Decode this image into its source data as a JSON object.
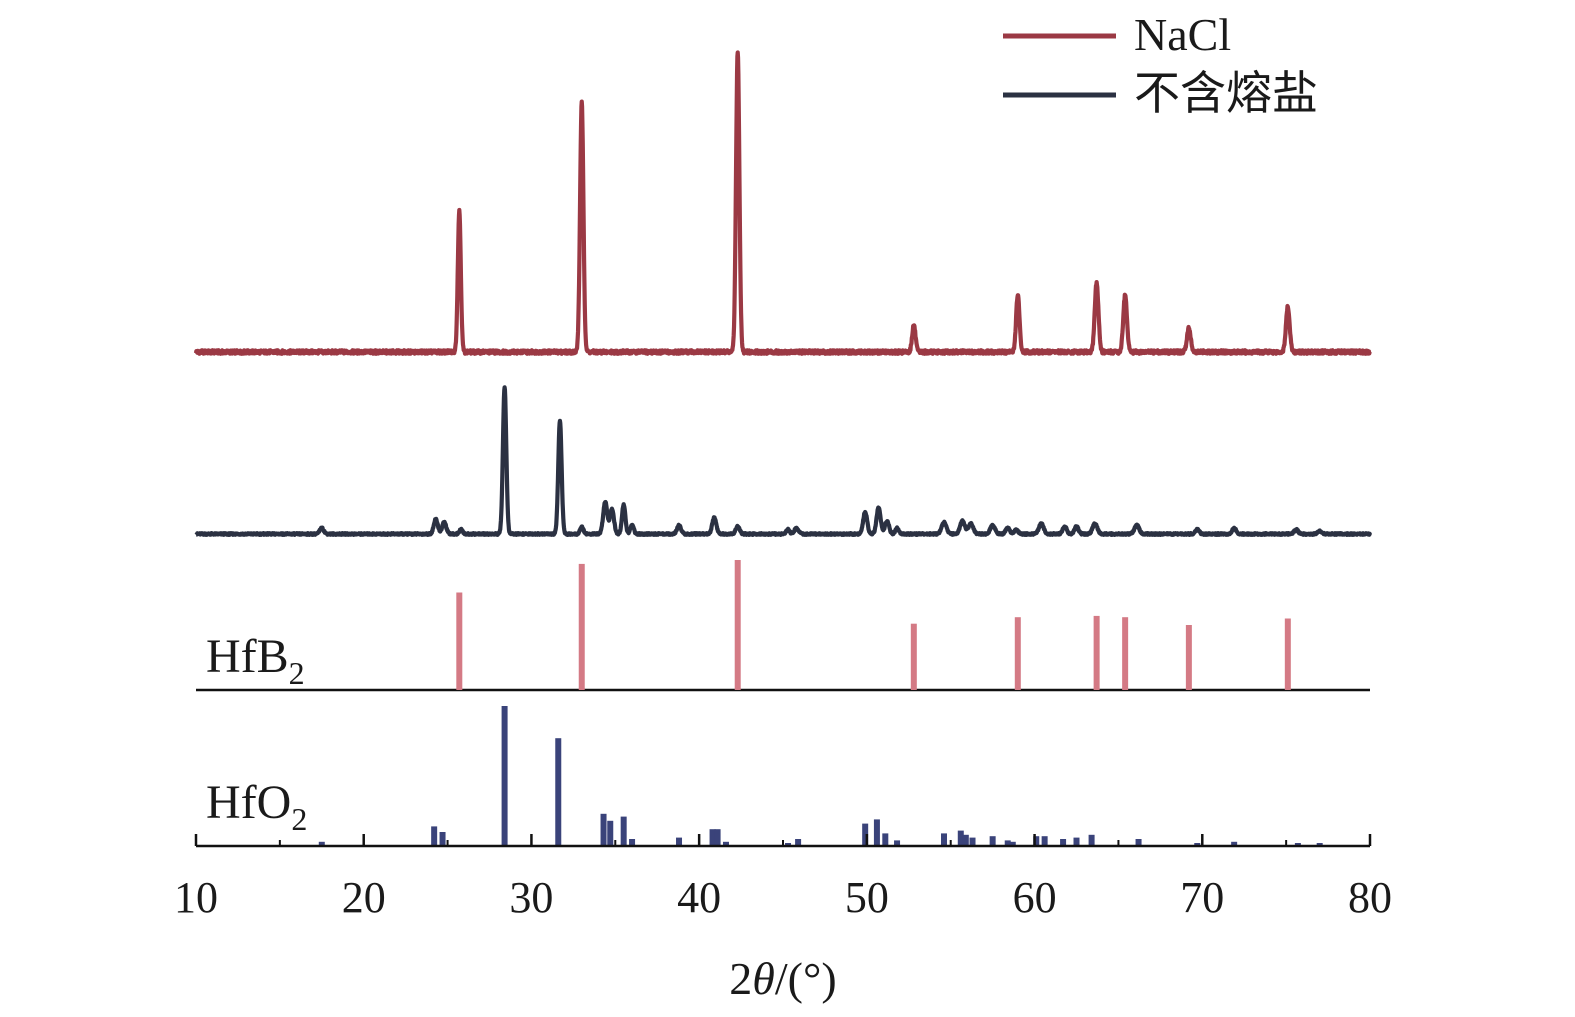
{
  "chart_data": {
    "type": "line",
    "title": "",
    "xlabel_parts": {
      "pre": "2",
      "italic": "θ",
      "post": "/(°)"
    },
    "ylabel": "",
    "xlim": [
      10,
      80
    ],
    "xticks": [
      10,
      20,
      30,
      40,
      50,
      60,
      70,
      80
    ],
    "grid": false,
    "legend": {
      "placement": "top-right",
      "entries": [
        {
          "series": "NaCl",
          "color": "#9b3944"
        },
        {
          "series": "不含熔盐",
          "color": "#2b3142"
        }
      ]
    },
    "series": [
      {
        "name": "NaCl",
        "color": "#9b3944",
        "peaks": [
          {
            "x": 25.7,
            "h": 0.47,
            "w": 0.09
          },
          {
            "x": 33.0,
            "h": 0.83,
            "w": 0.1
          },
          {
            "x": 42.3,
            "h": 1.0,
            "w": 0.1
          },
          {
            "x": 52.8,
            "h": 0.09,
            "w": 0.1
          },
          {
            "x": 59.0,
            "h": 0.19,
            "w": 0.1
          },
          {
            "x": 63.7,
            "h": 0.23,
            "w": 0.11
          },
          {
            "x": 65.4,
            "h": 0.19,
            "w": 0.11
          },
          {
            "x": 69.2,
            "h": 0.08,
            "w": 0.11
          },
          {
            "x": 75.1,
            "h": 0.15,
            "w": 0.11
          }
        ]
      },
      {
        "name": "不含熔盐",
        "color": "#2b3142",
        "peaks": [
          {
            "x": 17.5,
            "h": 0.04,
            "w": 0.12
          },
          {
            "x": 24.3,
            "h": 0.1,
            "w": 0.12
          },
          {
            "x": 24.8,
            "h": 0.08,
            "w": 0.12
          },
          {
            "x": 25.8,
            "h": 0.03,
            "w": 0.1
          },
          {
            "x": 28.4,
            "h": 1.0,
            "w": 0.1
          },
          {
            "x": 31.7,
            "h": 0.77,
            "w": 0.1
          },
          {
            "x": 33.0,
            "h": 0.05,
            "w": 0.1
          },
          {
            "x": 34.4,
            "h": 0.22,
            "w": 0.12
          },
          {
            "x": 34.8,
            "h": 0.17,
            "w": 0.12
          },
          {
            "x": 35.5,
            "h": 0.2,
            "w": 0.1
          },
          {
            "x": 36.0,
            "h": 0.06,
            "w": 0.1
          },
          {
            "x": 38.8,
            "h": 0.06,
            "w": 0.12
          },
          {
            "x": 40.9,
            "h": 0.11,
            "w": 0.12
          },
          {
            "x": 42.3,
            "h": 0.05,
            "w": 0.12
          },
          {
            "x": 45.3,
            "h": 0.03,
            "w": 0.1
          },
          {
            "x": 45.8,
            "h": 0.04,
            "w": 0.12
          },
          {
            "x": 49.9,
            "h": 0.15,
            "w": 0.12
          },
          {
            "x": 50.7,
            "h": 0.18,
            "w": 0.12
          },
          {
            "x": 51.2,
            "h": 0.09,
            "w": 0.12
          },
          {
            "x": 51.8,
            "h": 0.04,
            "w": 0.1
          },
          {
            "x": 54.6,
            "h": 0.08,
            "w": 0.14
          },
          {
            "x": 55.7,
            "h": 0.09,
            "w": 0.14
          },
          {
            "x": 56.2,
            "h": 0.07,
            "w": 0.14
          },
          {
            "x": 57.5,
            "h": 0.06,
            "w": 0.14
          },
          {
            "x": 58.4,
            "h": 0.04,
            "w": 0.12
          },
          {
            "x": 58.9,
            "h": 0.03,
            "w": 0.12
          },
          {
            "x": 60.4,
            "h": 0.07,
            "w": 0.14
          },
          {
            "x": 61.8,
            "h": 0.05,
            "w": 0.12
          },
          {
            "x": 62.5,
            "h": 0.05,
            "w": 0.12
          },
          {
            "x": 63.6,
            "h": 0.07,
            "w": 0.14
          },
          {
            "x": 66.1,
            "h": 0.06,
            "w": 0.14
          },
          {
            "x": 69.7,
            "h": 0.03,
            "w": 0.12
          },
          {
            "x": 71.9,
            "h": 0.04,
            "w": 0.12
          },
          {
            "x": 75.6,
            "h": 0.03,
            "w": 0.12
          },
          {
            "x": 77.0,
            "h": 0.02,
            "w": 0.12
          }
        ]
      }
    ],
    "reference_patterns": [
      {
        "name": "HfB2",
        "label_main": "HfB",
        "label_sub": "2",
        "color": "#d47a85",
        "lines": [
          {
            "x": 25.7,
            "i": 0.75
          },
          {
            "x": 33.0,
            "i": 0.97
          },
          {
            "x": 42.3,
            "i": 1.0
          },
          {
            "x": 52.8,
            "i": 0.51
          },
          {
            "x": 59.0,
            "i": 0.56
          },
          {
            "x": 63.7,
            "i": 0.57
          },
          {
            "x": 65.4,
            "i": 0.56
          },
          {
            "x": 69.2,
            "i": 0.5
          },
          {
            "x": 75.1,
            "i": 0.55
          }
        ]
      },
      {
        "name": "HfO2",
        "label_main": "HfO",
        "label_sub": "2",
        "color": "#3a437a",
        "lines": [
          {
            "x": 17.5,
            "i": 0.03
          },
          {
            "x": 24.2,
            "i": 0.14
          },
          {
            "x": 24.7,
            "i": 0.1
          },
          {
            "x": 28.4,
            "i": 1.0
          },
          {
            "x": 31.6,
            "i": 0.77
          },
          {
            "x": 34.3,
            "i": 0.23
          },
          {
            "x": 34.7,
            "i": 0.18
          },
          {
            "x": 35.5,
            "i": 0.21
          },
          {
            "x": 36.0,
            "i": 0.05
          },
          {
            "x": 38.8,
            "i": 0.06
          },
          {
            "x": 40.8,
            "i": 0.12
          },
          {
            "x": 41.1,
            "i": 0.12
          },
          {
            "x": 41.6,
            "i": 0.03
          },
          {
            "x": 45.3,
            "i": 0.02
          },
          {
            "x": 45.9,
            "i": 0.05
          },
          {
            "x": 49.9,
            "i": 0.16
          },
          {
            "x": 50.6,
            "i": 0.19
          },
          {
            "x": 51.1,
            "i": 0.09
          },
          {
            "x": 51.8,
            "i": 0.04
          },
          {
            "x": 54.6,
            "i": 0.09
          },
          {
            "x": 55.6,
            "i": 0.11
          },
          {
            "x": 55.9,
            "i": 0.08
          },
          {
            "x": 56.3,
            "i": 0.06
          },
          {
            "x": 57.5,
            "i": 0.07
          },
          {
            "x": 58.4,
            "i": 0.04
          },
          {
            "x": 58.7,
            "i": 0.03
          },
          {
            "x": 60.1,
            "i": 0.07
          },
          {
            "x": 60.6,
            "i": 0.07
          },
          {
            "x": 61.7,
            "i": 0.05
          },
          {
            "x": 62.5,
            "i": 0.06
          },
          {
            "x": 63.4,
            "i": 0.08
          },
          {
            "x": 66.2,
            "i": 0.05
          },
          {
            "x": 69.7,
            "i": 0.02
          },
          {
            "x": 71.9,
            "i": 0.03
          },
          {
            "x": 75.7,
            "i": 0.02
          },
          {
            "x": 77.0,
            "i": 0.02
          }
        ]
      }
    ]
  }
}
